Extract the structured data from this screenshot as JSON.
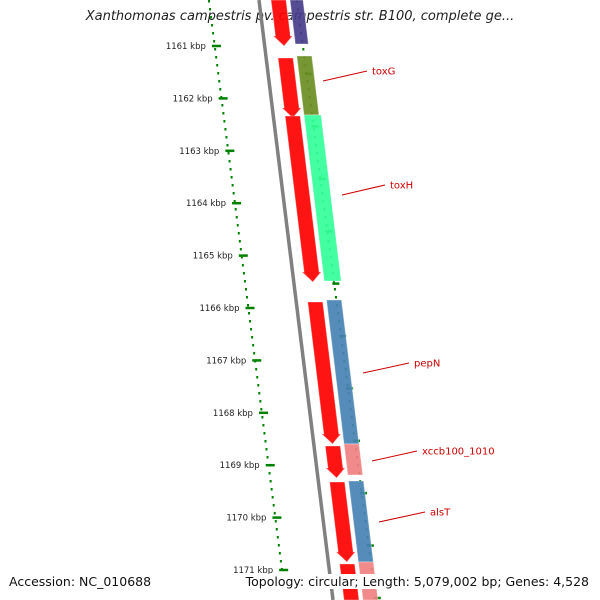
{
  "title": "Xanthomonas campestris pv. campestris str. B100, complete ge...",
  "footer": {
    "accession": "Accession: NC_010688",
    "summary": "Topology: circular; Length: 5,079,002 bp; Genes: 4,528"
  },
  "ticks": [
    "1161 kbp",
    "1162 kbp",
    "1163 kbp",
    "1164 kbp",
    "1165 kbp",
    "1166 kbp",
    "1167 kbp",
    "1168 kbp",
    "1169 kbp",
    "1170 kbp",
    "1171 kbp"
  ],
  "gene_labels": [
    "toxG",
    "toxH",
    "pepN",
    "xccb100_1010",
    "alsT"
  ],
  "colors": {
    "backbone": "#808080",
    "cds": "#ff0000",
    "ruler": "#008000",
    "label": "#cc0000",
    "toxG": "#6b8e23",
    "toxH": "#33ff99",
    "pepN": "#4682b4",
    "xccb100_1010": "#f08080",
    "alsT": "#4682b4",
    "top_gene": "#483d8b"
  }
}
